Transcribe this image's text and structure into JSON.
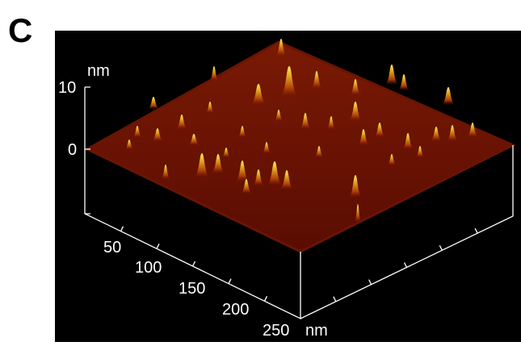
{
  "panel_label": "C",
  "z_axis": {
    "unit": "nm",
    "ticks": [
      "10",
      "0"
    ]
  },
  "x_axis": {
    "ticks": [
      "50",
      "100",
      "150",
      "200",
      "250"
    ],
    "unit": "nm"
  }
}
